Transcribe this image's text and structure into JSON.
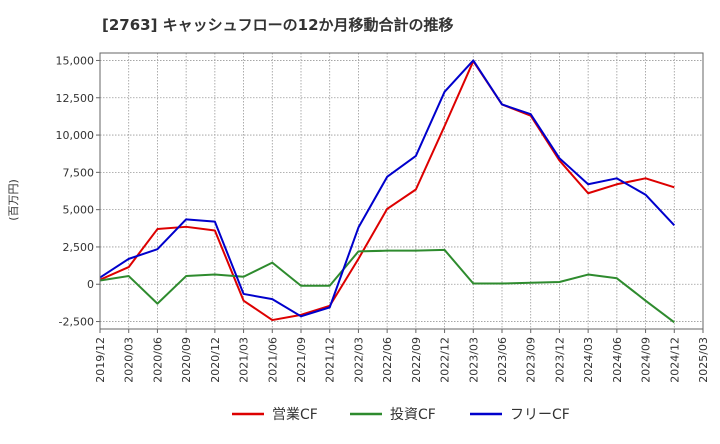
{
  "chart_data": {
    "type": "line",
    "title": "[2763]  キャッシュフローの12か月移動合計の推移",
    "ylabel": "(百万円)",
    "xlabel": "",
    "ylim": [
      -3000,
      15500
    ],
    "yticks": [
      -2500,
      0,
      2500,
      5000,
      7500,
      10000,
      12500,
      15000
    ],
    "ytick_labels": [
      "-2,500",
      "0",
      "2,500",
      "5,000",
      "7,500",
      "10,000",
      "12,500",
      "15,000"
    ],
    "grid": true,
    "legend_position": "bottom",
    "x": [
      "2019/12",
      "2020/03",
      "2020/06",
      "2020/09",
      "2020/12",
      "2021/03",
      "2021/06",
      "2021/09",
      "2021/12",
      "2022/03",
      "2022/06",
      "2022/09",
      "2022/12",
      "2023/03",
      "2023/06",
      "2023/09",
      "2023/12",
      "2024/03",
      "2024/06",
      "2024/09",
      "2024/12",
      "2025/03"
    ],
    "series": [
      {
        "name": "営業CF",
        "color": "#dd0000",
        "values": [
          300,
          1150,
          3700,
          3850,
          3600,
          -1100,
          -2400,
          -2050,
          -1450,
          1700,
          5050,
          6350,
          10600,
          14950,
          12050,
          11300,
          8300,
          6100,
          6700,
          7100,
          6500,
          null
        ]
      },
      {
        "name": "投資CF",
        "color": "#2e8b2e",
        "values": [
          250,
          550,
          -1300,
          550,
          650,
          500,
          1450,
          -100,
          -100,
          2200,
          2250,
          2250,
          2300,
          50,
          50,
          100,
          150,
          650,
          400,
          -1100,
          -2550,
          null
        ]
      },
      {
        "name": "フリーCF",
        "color": "#0000cc",
        "values": [
          450,
          1700,
          2350,
          4350,
          4200,
          -650,
          -1000,
          -2150,
          -1550,
          3800,
          7200,
          8600,
          12900,
          15000,
          12050,
          11400,
          8450,
          6700,
          7100,
          6000,
          3950,
          null
        ]
      }
    ]
  }
}
